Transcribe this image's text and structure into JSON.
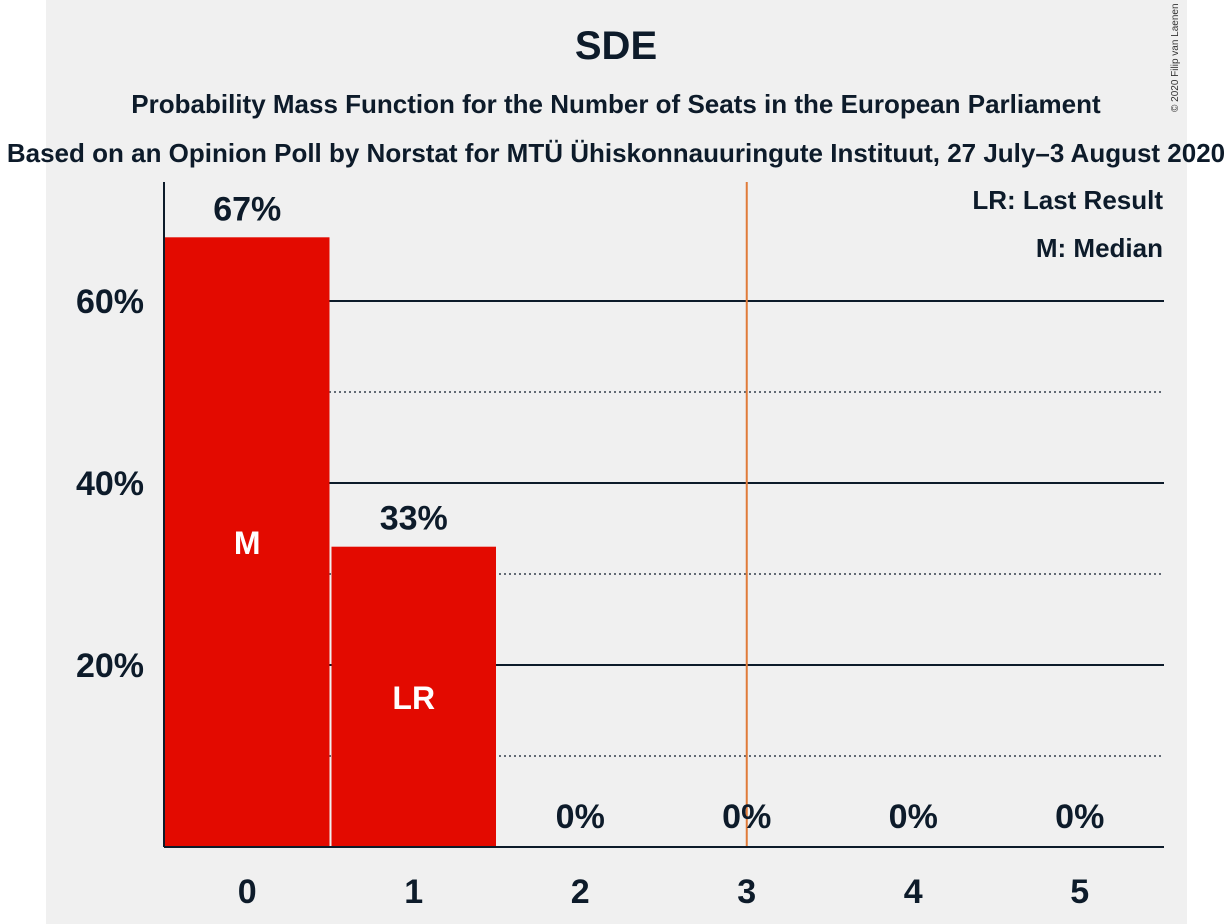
{
  "title": "SDE",
  "subtitle": "Probability Mass Function for the Number of Seats in the European Parliament",
  "subtitle2": "Based on an Opinion Poll by Norstat for MTÜ Ühiskonnauuringute Instituut, 27 July–3 August 2020",
  "copyright": "© 2020 Filip van Laenen",
  "legend": {
    "last_result": "LR: Last Result",
    "median": "M: Median"
  },
  "colors": {
    "bar": "#e30a00",
    "threshold_line": "#e07b39",
    "axis": "#0d1b2a",
    "background": "#f0f0f0"
  },
  "chart_data": {
    "type": "bar",
    "categories": [
      "0",
      "1",
      "2",
      "3",
      "4",
      "5"
    ],
    "values": [
      67,
      33,
      0,
      0,
      0,
      0
    ],
    "value_labels": [
      "67%",
      "33%",
      "0%",
      "0%",
      "0%",
      "0%"
    ],
    "bar_markers": [
      "M",
      "LR",
      "",
      "",
      "",
      ""
    ],
    "threshold_x": 3.5,
    "ylim": [
      0,
      73
    ],
    "y_ticks": [
      20,
      40,
      60
    ],
    "y_tick_labels": [
      "20%",
      "40%",
      "60%"
    ],
    "minor_gridlines": [
      10,
      30,
      50
    ],
    "grid": true,
    "legend_placement": "top-right"
  }
}
